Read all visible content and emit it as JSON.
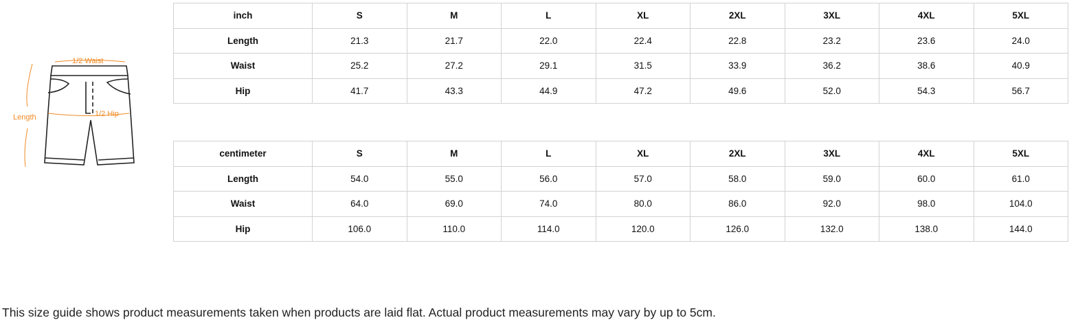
{
  "diagram": {
    "labels": {
      "waist": "1/2 Waist",
      "hip": "1/2 Hip",
      "length": "Length"
    },
    "accent_color": "#f08a24"
  },
  "tables": [
    {
      "unit": "inch",
      "sizes": [
        "S",
        "M",
        "L",
        "XL",
        "2XL",
        "3XL",
        "4XL",
        "5XL"
      ],
      "rows": [
        {
          "label": "Length",
          "values": [
            "21.3",
            "21.7",
            "22.0",
            "22.4",
            "22.8",
            "23.2",
            "23.6",
            "24.0"
          ]
        },
        {
          "label": "Waist",
          "values": [
            "25.2",
            "27.2",
            "29.1",
            "31.5",
            "33.9",
            "36.2",
            "38.6",
            "40.9"
          ]
        },
        {
          "label": "Hip",
          "values": [
            "41.7",
            "43.3",
            "44.9",
            "47.2",
            "49.6",
            "52.0",
            "54.3",
            "56.7"
          ]
        }
      ]
    },
    {
      "unit": "centimeter",
      "sizes": [
        "S",
        "M",
        "L",
        "XL",
        "2XL",
        "3XL",
        "4XL",
        "5XL"
      ],
      "rows": [
        {
          "label": "Length",
          "values": [
            "54.0",
            "55.0",
            "56.0",
            "57.0",
            "58.0",
            "59.0",
            "60.0",
            "61.0"
          ]
        },
        {
          "label": "Waist",
          "values": [
            "64.0",
            "69.0",
            "74.0",
            "80.0",
            "86.0",
            "92.0",
            "98.0",
            "104.0"
          ]
        },
        {
          "label": "Hip",
          "values": [
            "106.0",
            "110.0",
            "114.0",
            "120.0",
            "126.0",
            "132.0",
            "138.0",
            "144.0"
          ]
        }
      ]
    }
  ],
  "note": "This size guide shows product measurements taken when products are laid flat. Actual product measurements may vary by up to 5cm."
}
